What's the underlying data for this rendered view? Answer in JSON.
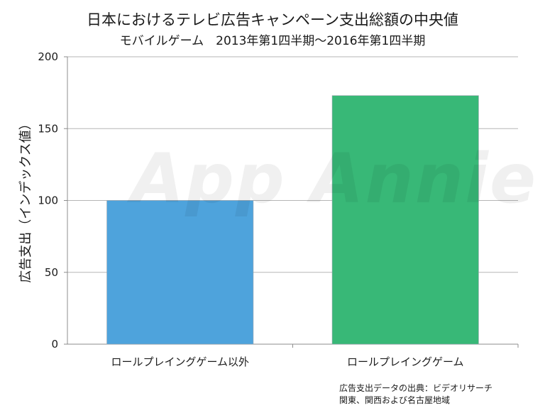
{
  "title": "日本におけるテレビ広告キャンペーン支出総額の中央値",
  "subtitle": "モバイルゲーム　2013年第1四半期～2016年第1四半期",
  "watermark": "App Annie",
  "source": {
    "line1": "広告支出データの出典：ビデオリサーチ",
    "line2": "関東、関西および名古屋地域"
  },
  "chart_data": {
    "type": "bar",
    "title": "日本におけるテレビ広告キャンペーン支出総額の中央値",
    "subtitle": "モバイルゲーム　2013年第1四半期～2016年第1四半期",
    "xlabel": "",
    "ylabel": "広告支出（インデックス値）",
    "categories": [
      "ロールプレイングゲーム以外",
      "ロールプレイングゲーム"
    ],
    "values": [
      100,
      173
    ],
    "colors": [
      "#4ea3dc",
      "#38b877"
    ],
    "ylim": [
      0,
      200
    ],
    "yticks": [
      0,
      50,
      100,
      150,
      200
    ],
    "grid": true,
    "legend": "none"
  }
}
